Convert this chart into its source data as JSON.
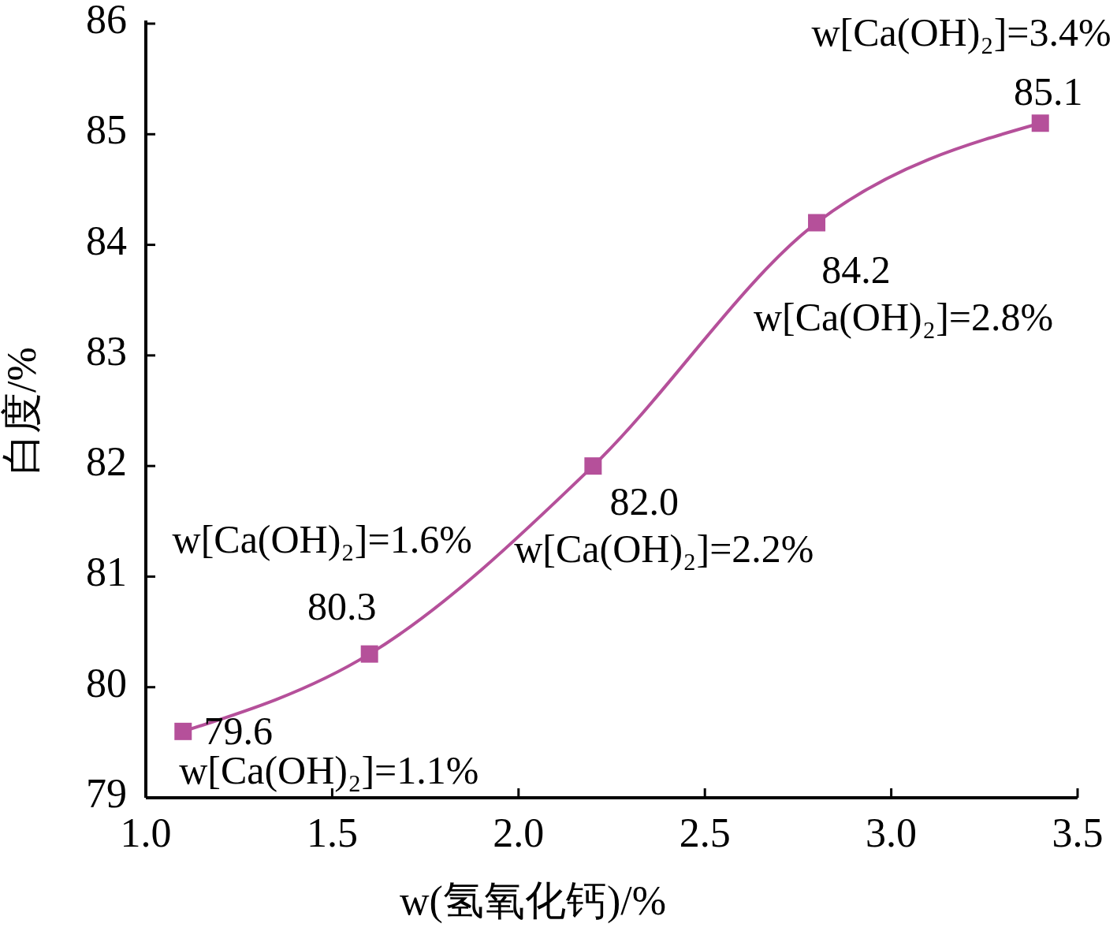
{
  "chart_data": {
    "type": "line",
    "xlabel": "w(氢氧化钙)/%",
    "ylabel": "白度/%",
    "x": [
      1.1,
      1.6,
      2.2,
      2.8,
      3.4
    ],
    "series": [
      {
        "color": "#b5509a",
        "values": [
          79.6,
          80.3,
          82.0,
          84.2,
          85.1
        ],
        "value_labels": [
          "79.6",
          "80.3",
          "82.0",
          "84.2",
          "85.1"
        ]
      }
    ],
    "xlim": [
      1.0,
      3.5
    ],
    "xticks": [
      {
        "value": 1.0,
        "label": "1.0"
      },
      1.5,
      {
        "value": 2.0,
        "label": "2.0"
      },
      2.5,
      {
        "value": 3.0,
        "label": "3.0"
      },
      3.5
    ],
    "ylim": [
      79,
      86
    ],
    "yticks": [
      79,
      80,
      81,
      82,
      83,
      84,
      85,
      86
    ],
    "marker": "square",
    "grid": false,
    "annotations": [
      {
        "text": "w[Ca(OH)₂]=1.1%",
        "x": 1.1,
        "y": 79.6
      },
      {
        "text": "w[Ca(OH)₂]=1.6%",
        "x": 1.6,
        "y": 80.3
      },
      {
        "text": "w[Ca(OH)₂]=2.2%",
        "x": 2.2,
        "y": 82.0
      },
      {
        "text": "w[Ca(OH)₂]=2.8%",
        "x": 2.8,
        "y": 84.2
      },
      {
        "text": "w[Ca(OH)₂]=3.4%",
        "x": 3.4,
        "y": 85.1
      }
    ]
  }
}
